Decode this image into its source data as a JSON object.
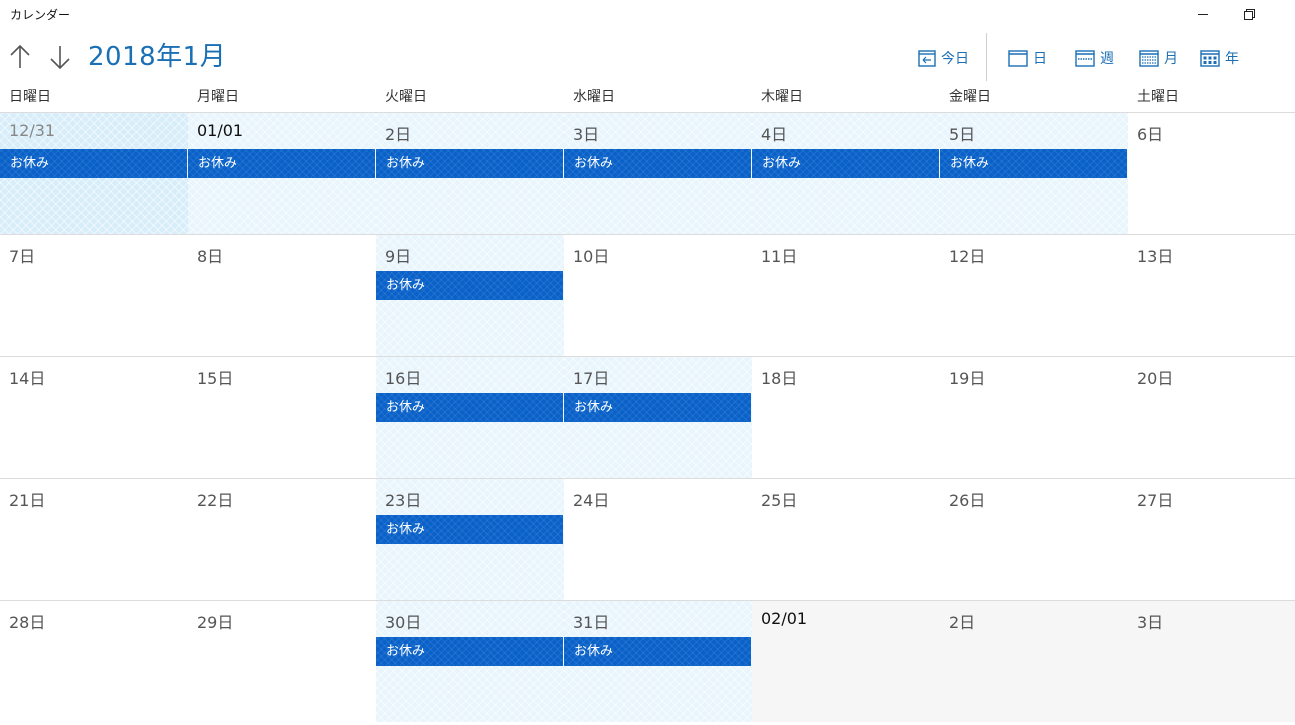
{
  "app": {
    "title": "カレンダー"
  },
  "header": {
    "month_title": "2018年1月"
  },
  "views": {
    "today": "今日",
    "day": "日",
    "week": "週",
    "month": "月",
    "year": "年"
  },
  "weekdays": [
    "日曜日",
    "月曜日",
    "火曜日",
    "水曜日",
    "木曜日",
    "金曜日",
    "土曜日"
  ],
  "event_label": "お休み",
  "weeks": [
    [
      {
        "label": "12/31",
        "style": "dim",
        "holiday": true,
        "event": "お休み",
        "strong": true
      },
      {
        "label": "01/01",
        "style": "bold",
        "holiday": true,
        "event": "お休み"
      },
      {
        "label": "2日",
        "holiday": true,
        "event": "お休み"
      },
      {
        "label": "3日",
        "holiday": true,
        "event": "お休み"
      },
      {
        "label": "4日",
        "holiday": true,
        "event": "お休み"
      },
      {
        "label": "5日",
        "holiday": true,
        "event": "お休み"
      },
      {
        "label": "6日"
      }
    ],
    [
      {
        "label": "7日"
      },
      {
        "label": "8日"
      },
      {
        "label": "9日",
        "holiday": true,
        "event": "お休み"
      },
      {
        "label": "10日"
      },
      {
        "label": "11日"
      },
      {
        "label": "12日"
      },
      {
        "label": "13日"
      }
    ],
    [
      {
        "label": "14日"
      },
      {
        "label": "15日"
      },
      {
        "label": "16日",
        "holiday": true,
        "event": "お休み"
      },
      {
        "label": "17日",
        "holiday": true,
        "event": "お休み"
      },
      {
        "label": "18日"
      },
      {
        "label": "19日"
      },
      {
        "label": "20日"
      }
    ],
    [
      {
        "label": "21日"
      },
      {
        "label": "22日"
      },
      {
        "label": "23日",
        "holiday": true,
        "event": "お休み"
      },
      {
        "label": "24日"
      },
      {
        "label": "25日"
      },
      {
        "label": "26日"
      },
      {
        "label": "27日"
      }
    ],
    [
      {
        "label": "28日"
      },
      {
        "label": "29日"
      },
      {
        "label": "30日",
        "holiday": true,
        "event": "お休み"
      },
      {
        "label": "31日",
        "holiday": true,
        "event": "お休み"
      },
      {
        "label": "02/01",
        "style": "bold",
        "next": true
      },
      {
        "label": "2日",
        "next": true
      },
      {
        "label": "3日",
        "next": true
      }
    ]
  ]
}
